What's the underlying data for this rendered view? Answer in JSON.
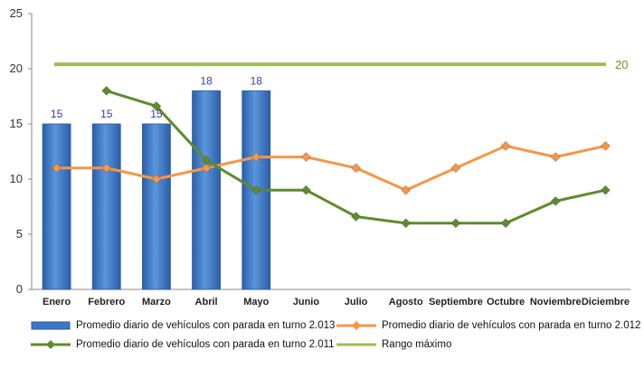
{
  "chart_data": {
    "type": "bar",
    "categories": [
      "Enero",
      "Febrero",
      "Marzo",
      "Abril",
      "Mayo",
      "Junio",
      "Julio",
      "Agosto",
      "Septiembre",
      "Octubre",
      "Noviembre",
      "Diciembre"
    ],
    "ylim": [
      0,
      25
    ],
    "yticks": [
      0,
      5,
      10,
      15,
      20,
      25
    ],
    "grid": false,
    "legend_position": "bottom",
    "series": [
      {
        "name": "Promedio diario de vehículos con parada en turno 2.013",
        "type": "bar",
        "color": "#3b76c4",
        "values": [
          15,
          15,
          15,
          18,
          18,
          null,
          null,
          null,
          null,
          null,
          null,
          null
        ]
      },
      {
        "name": "Promedio diario de vehículos con parada en turno 2.012",
        "type": "line",
        "color": "#f79646",
        "values": [
          11,
          11,
          10,
          11,
          12,
          12,
          11,
          9,
          11,
          13,
          12,
          13
        ]
      },
      {
        "name": "Promedio diario de vehículos con parada en turno 2.011",
        "type": "line",
        "color": "#5e8b2b",
        "values": [
          null,
          18,
          16.6,
          11.7,
          9,
          9,
          6.6,
          6,
          6,
          6,
          8,
          9
        ]
      },
      {
        "name": "Rango máximo",
        "type": "line",
        "color": "#9bbb59",
        "values": [
          20.4,
          20.4,
          20.4,
          20.4,
          20.4,
          20.4,
          20.4,
          20.4,
          20.4,
          20.4,
          20.4,
          20.4
        ],
        "end_label": "20"
      }
    ],
    "bar_labels": [
      "15",
      "15",
      "15",
      "18",
      "18"
    ]
  }
}
